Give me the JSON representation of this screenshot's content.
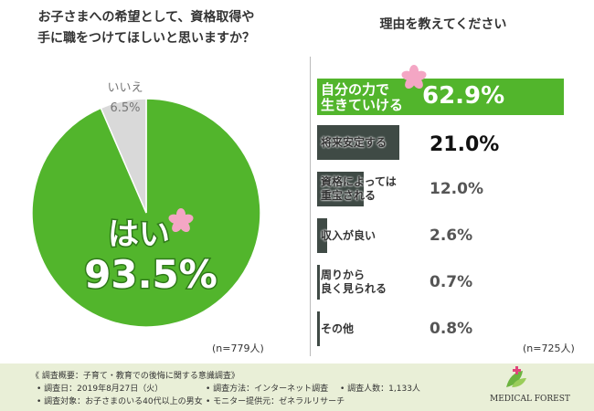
{
  "chart_data": [
    {
      "type": "pie",
      "title": "お子さまへの希望として、資格取得や\n手に職をつけてほしいと思いますか？",
      "categories": [
        "はい",
        "いいえ"
      ],
      "values": [
        93.5,
        6.5
      ],
      "value_labels": [
        "93.5%",
        "6.5%"
      ],
      "colors": [
        "#52b52c",
        "#d9d9d9"
      ],
      "note": "(n=779人)"
    },
    {
      "type": "barh",
      "title": "理由を教えてください",
      "categories": [
        "自分の力で\n生きていける",
        "将来安定する",
        "資格によっては\n重宝される",
        "収入が良い",
        "周りから\n良く見られる",
        "その他"
      ],
      "values": [
        62.9,
        21.0,
        12.0,
        2.6,
        0.7,
        0.8
      ],
      "value_labels": [
        "62.9%",
        "21.0%",
        "12.0%",
        "2.6%",
        "0.7%",
        "0.8%"
      ],
      "colors": [
        "#52b52c",
        "#3f4a45",
        "#3f4a45",
        "#3f4a45",
        "#3f4a45",
        "#3f4a45"
      ],
      "note": "(n=725人)"
    }
  ],
  "survey": {
    "heading": "《 調査概要：子育て・教育での後悔に関する意識調査》",
    "items": [
      "• 調査日：2019年8月27日（火）",
      "• 調査方法：インターネット調査",
      "• 調査人数：1,133人",
      "• 調査対象：お子さまのいる40代以上の男女",
      "• モニター提供元：ゼネラルリサーチ"
    ]
  },
  "logo": "MEDICAL FOREST"
}
